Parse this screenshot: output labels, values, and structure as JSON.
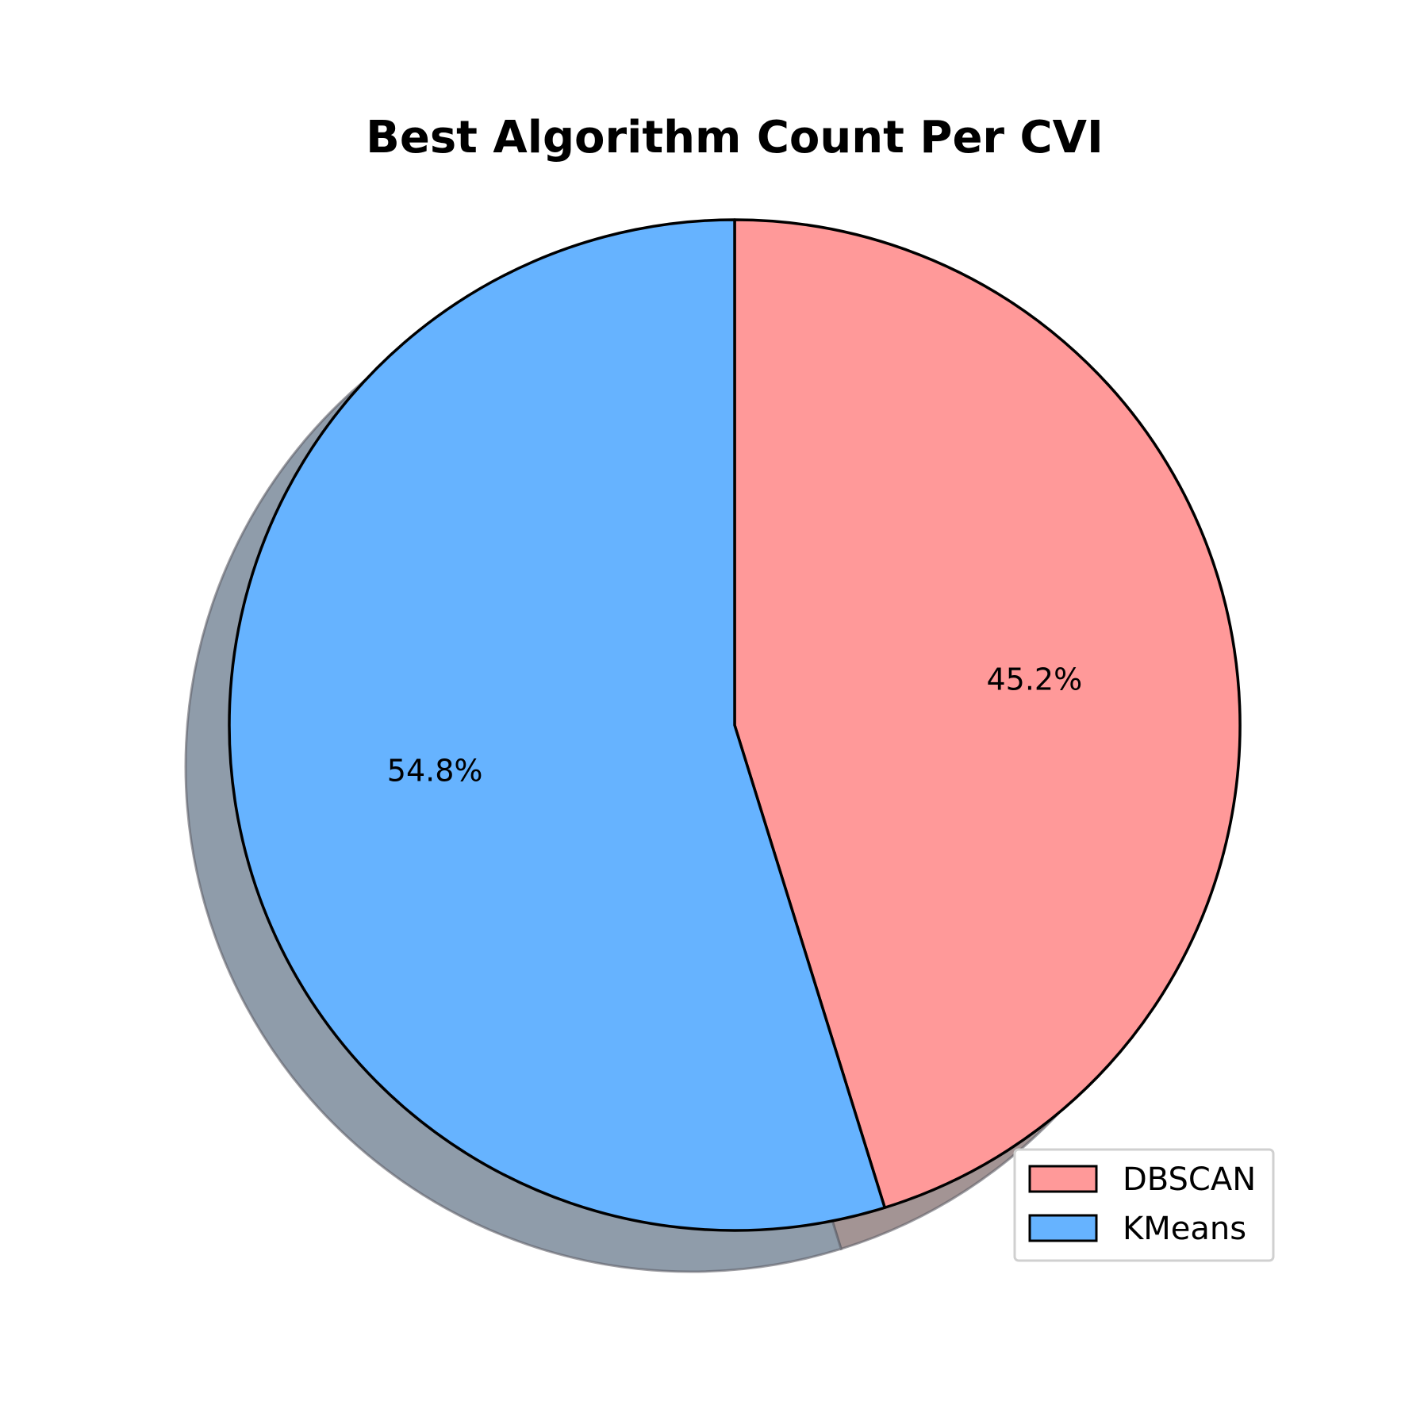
{
  "chart_data": {
    "type": "pie",
    "title": "Best Algorithm Count Per CVI",
    "labels": [
      "DBSCAN",
      "KMeans"
    ],
    "values": [
      45.2,
      54.8
    ],
    "percent_labels": [
      "45.2%",
      "54.8%"
    ],
    "colors": [
      "#ff9999",
      "#66b3ff"
    ],
    "shadow_colors": [
      "#a39494",
      "#8f9caa"
    ],
    "edge_color": "#000000",
    "start_angle_deg": 90,
    "direction": "clockwise",
    "shadow": true,
    "legend_position": "lower-right"
  }
}
